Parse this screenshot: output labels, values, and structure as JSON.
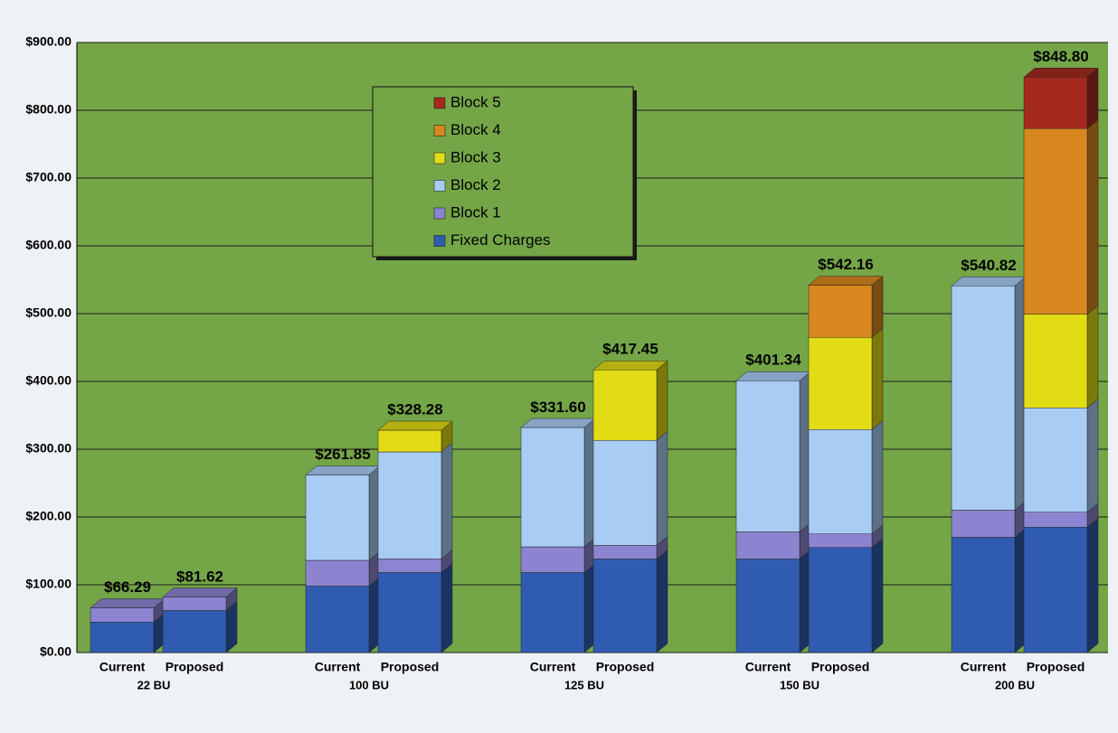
{
  "chart_data": {
    "type": "stacked-bar-3d",
    "categories": [
      "Current",
      "Proposed",
      "Current",
      "Proposed",
      "Current",
      "Proposed",
      "Current",
      "Proposed",
      "Current",
      "Proposed"
    ],
    "groups": [
      "22 BU",
      "100 BU",
      "125 BU",
      "150 BU",
      "200 BU"
    ],
    "series": [
      {
        "name": "Fixed Charges",
        "color": "#2f5cb0",
        "values": [
          45,
          62,
          98,
          118,
          118,
          138,
          138,
          155,
          170,
          185
        ]
      },
      {
        "name": "Block 1",
        "color": "#8c84d0",
        "values": [
          21,
          20,
          38,
          20,
          38,
          20,
          40,
          20,
          40,
          22
        ]
      },
      {
        "name": "Block 2",
        "color": "#a8ccf4",
        "values": [
          null,
          null,
          126,
          158,
          176,
          155,
          223,
          154,
          331,
          154
        ]
      },
      {
        "name": "Block 3",
        "color": "#e2dc14",
        "values": [
          null,
          null,
          null,
          32,
          null,
          104,
          null,
          136,
          null,
          138
        ]
      },
      {
        "name": "Block 4",
        "color": "#d8881e",
        "values": [
          null,
          null,
          null,
          null,
          null,
          null,
          null,
          77,
          null,
          274
        ]
      },
      {
        "name": "Block 5",
        "color": "#a42a1e",
        "values": [
          null,
          null,
          null,
          null,
          null,
          null,
          null,
          null,
          null,
          76
        ]
      }
    ],
    "totals": [
      66.29,
      81.62,
      261.85,
      328.28,
      331.6,
      417.45,
      401.34,
      542.16,
      540.82,
      848.8
    ],
    "total_labels": [
      "$66.29",
      "$81.62",
      "$261.85",
      "$328.28",
      "$331.60",
      "$417.45",
      "$401.34",
      "$542.16",
      "$540.82",
      "$848.80"
    ],
    "ylim": [
      0,
      900
    ],
    "yticks": [
      {
        "value": 0,
        "label": "$0.00"
      },
      {
        "value": 100,
        "label": "$100.00"
      },
      {
        "value": 200,
        "label": "$200.00"
      },
      {
        "value": 300,
        "label": "$300.00"
      },
      {
        "value": 400,
        "label": "$400.00"
      },
      {
        "value": 500,
        "label": "$500.00"
      },
      {
        "value": 600,
        "label": "$600.00"
      },
      {
        "value": 700,
        "label": "$700.00"
      },
      {
        "value": 800,
        "label": "$800.00"
      },
      {
        "value": 900,
        "label": "$900.00"
      }
    ],
    "grid": true,
    "legend": "top-center"
  }
}
